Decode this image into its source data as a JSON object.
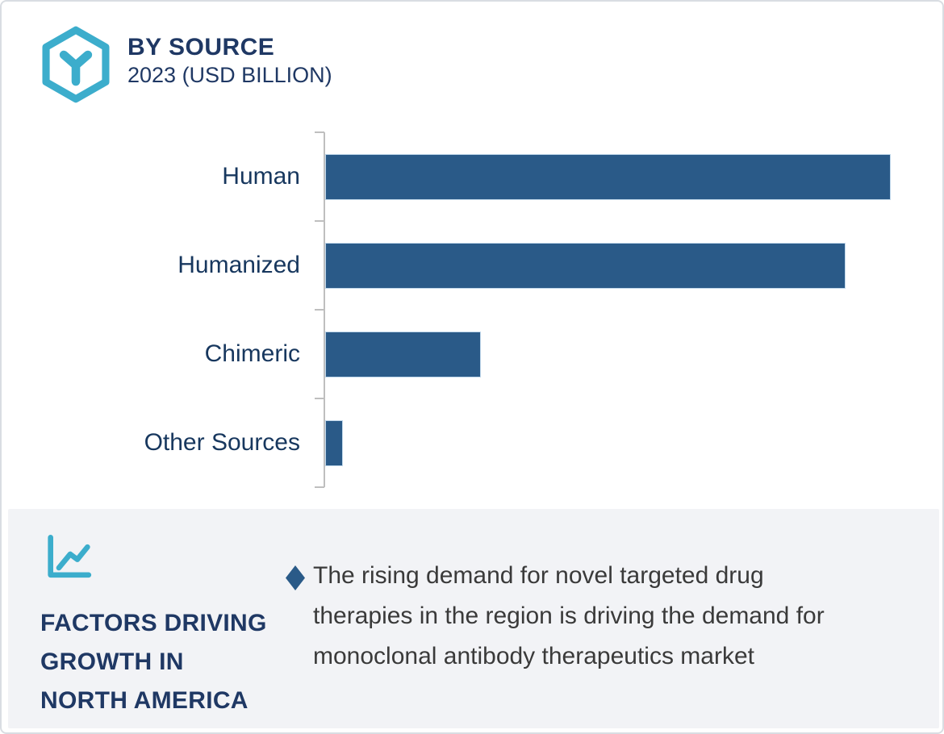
{
  "header": {
    "title": "BY SOURCE",
    "subtitle": "2023 (USD BILLION)",
    "logo_icon": "hexagon-antibody-y-icon",
    "accent_color": "#3cadcc",
    "title_color": "#1f3864"
  },
  "chart_data": {
    "type": "bar",
    "orientation": "horizontal",
    "title": "BY SOURCE 2023 (USD BILLION)",
    "categories": [
      "Human",
      "Humanized",
      "Chimeric",
      "Other Sources"
    ],
    "values": [
      100,
      92,
      27.3,
      2.9
    ],
    "unit": "relative units (value axis not labeled; estimated from bar lengths)",
    "xlabel": "",
    "ylabel": "",
    "grid": false,
    "legend": false,
    "bar_color": "#2a5a88",
    "axis_color": "#bfbfbf",
    "label_color": "#17375e"
  },
  "footer": {
    "bg_color": "#f2f3f6",
    "icon": "line-chart-icon",
    "heading_lines": [
      "FACTORS DRIVING",
      "GROWTH IN",
      "NORTH AMERICA"
    ],
    "bullet": {
      "marker": "diamond",
      "marker_color": "#2a5a88",
      "text": "The rising demand for novel targeted drug therapies in the region is driving the demand for monoclonal antibody therapeutics market",
      "lines": [
        "The rising demand for novel targeted drug",
        "therapies in the region is driving the demand for",
        "monoclonal antibody therapeutics market"
      ]
    }
  }
}
